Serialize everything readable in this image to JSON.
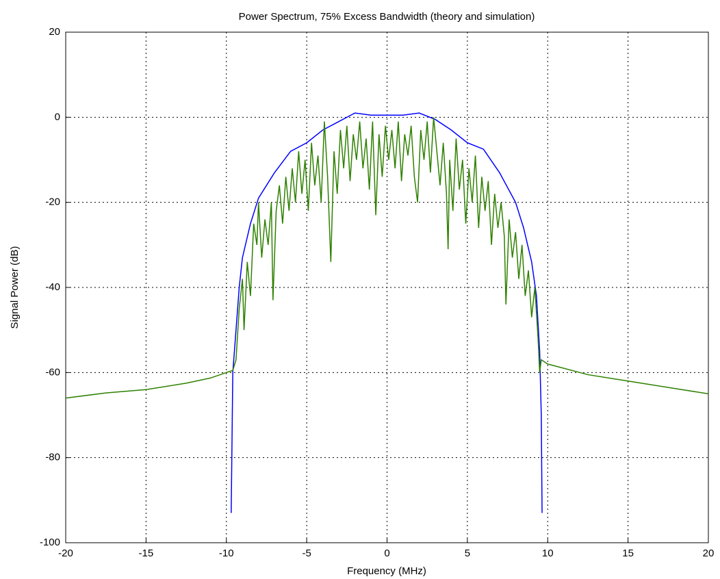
{
  "chart_data": {
    "type": "line",
    "title": "Power Spectrum, 75% Excess Bandwidth (theory and simulation)",
    "x_label": "Frequency (MHz)",
    "y_label": "Signal Power (dB)",
    "xlim": [
      -20,
      20
    ],
    "ylim": [
      -100,
      20
    ],
    "xticks": [
      -20,
      -15,
      -10,
      -5,
      0,
      5,
      10,
      15,
      20
    ],
    "yticks": [
      -100,
      -80,
      -60,
      -40,
      -20,
      0,
      20
    ],
    "grid": true,
    "series": [
      {
        "color": "#0000ff",
        "x": [
          -9.7,
          -9.6,
          -9.4,
          -9.2,
          -9,
          -8.5,
          -8,
          -7,
          -6,
          -5,
          -4,
          -3,
          -2,
          -1,
          0,
          1,
          2,
          3,
          4,
          5,
          6,
          7,
          8,
          8.5,
          9,
          9.3,
          9.5,
          9.6,
          9.65
        ],
        "values": [
          -93,
          -60,
          -50,
          -40,
          -33,
          -25,
          -19,
          -13,
          -8,
          -6,
          -3,
          -1,
          1,
          0.5,
          0.5,
          0.5,
          1,
          -0.5,
          -3,
          -6,
          -7.5,
          -13,
          -20,
          -26,
          -34,
          -42,
          -55,
          -70,
          -93
        ]
      },
      {
        "color": "#2e8000",
        "x": [
          -20,
          -17.5,
          -15,
          -12.5,
          -11,
          -10,
          -9.6,
          -9.4,
          -9.2,
          -9,
          -8.9,
          -8.7,
          -8.5,
          -8.3,
          -8.1,
          -8,
          -7.8,
          -7.6,
          -7.4,
          -7.2,
          -7.1,
          -6.9,
          -6.7,
          -6.5,
          -6.3,
          -6.1,
          -5.9,
          -5.7,
          -5.5,
          -5.3,
          -5.1,
          -4.9,
          -4.7,
          -4.5,
          -4.3,
          -4.1,
          -3.9,
          -3.7,
          -3.5,
          -3.3,
          -3.1,
          -2.9,
          -2.7,
          -2.5,
          -2.3,
          -2.1,
          -1.9,
          -1.7,
          -1.5,
          -1.3,
          -1.1,
          -0.9,
          -0.7,
          -0.5,
          -0.3,
          -0.1,
          0.1,
          0.3,
          0.5,
          0.7,
          0.9,
          1.1,
          1.3,
          1.5,
          1.7,
          1.9,
          2.1,
          2.3,
          2.5,
          2.7,
          2.9,
          3.1,
          3.3,
          3.5,
          3.7,
          3.8,
          3.9,
          4.1,
          4.3,
          4.5,
          4.7,
          4.9,
          5.1,
          5.3,
          5.5,
          5.7,
          5.9,
          6.1,
          6.3,
          6.5,
          6.7,
          6.9,
          7.1,
          7.3,
          7.4,
          7.6,
          7.8,
          8,
          8.2,
          8.4,
          8.6,
          8.8,
          9,
          9.2,
          9.4,
          9.5,
          9.6,
          10,
          12.5,
          15,
          17.5,
          20
        ],
        "values": [
          -66,
          -64.8,
          -64,
          -62.5,
          -61.3,
          -60,
          -59.5,
          -57,
          -45,
          -38,
          -50,
          -34,
          -42,
          -25,
          -30,
          -20,
          -33,
          -24,
          -30,
          -20,
          -43,
          -22,
          -16,
          -25,
          -14,
          -22,
          -12,
          -20,
          -8,
          -18,
          -10,
          -22,
          -6,
          -16,
          -9,
          -20,
          -1,
          -14,
          -34,
          -8,
          -18,
          -3,
          -12,
          -2,
          -15,
          -4,
          -10,
          -1,
          -12,
          -5,
          -17,
          -1,
          -23,
          -4,
          -14,
          -2,
          -10,
          -3,
          -12,
          -1,
          -15,
          -4,
          -9,
          -2,
          -14,
          -20,
          -3,
          -10,
          -1,
          -13,
          0,
          -8,
          -16,
          -6,
          -18,
          -31,
          -10,
          -22,
          -5,
          -17,
          -10,
          -25,
          -12,
          -20,
          -9,
          -26,
          -14,
          -22,
          -15,
          -30,
          -18,
          -26,
          -20,
          -28,
          -44,
          -24,
          -33,
          -27,
          -38,
          -30,
          -42,
          -36,
          -47,
          -40,
          -52,
          -60,
          -57,
          -58,
          -60.5,
          -62,
          -63.5,
          -65
        ]
      }
    ]
  }
}
